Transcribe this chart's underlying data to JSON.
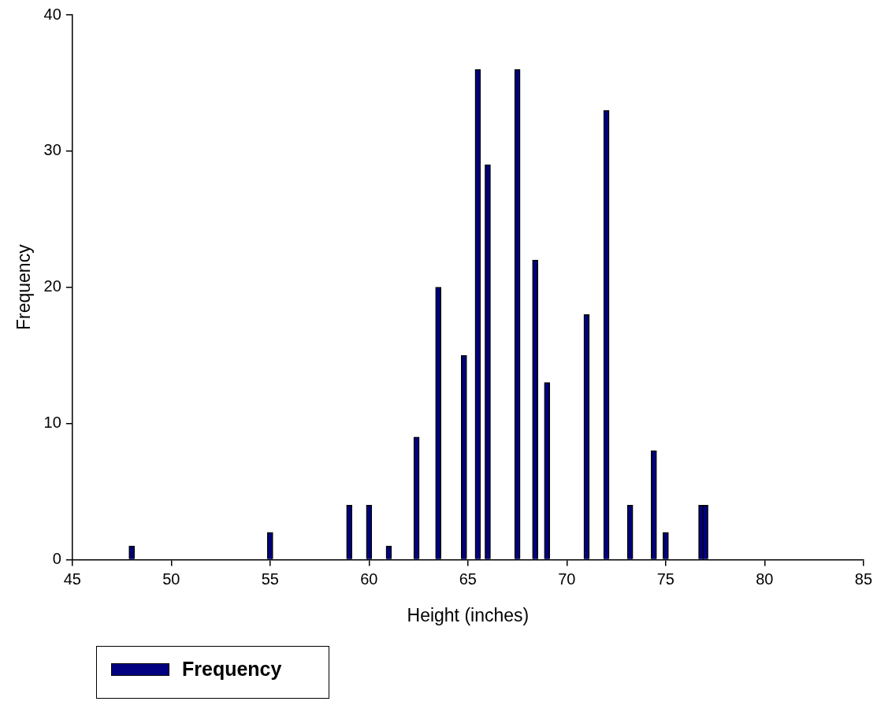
{
  "chart_data": {
    "type": "bar",
    "xlabel": "Height (inches)",
    "ylabel": "Frequency",
    "x": [
      48,
      55,
      59,
      60,
      61,
      62.4,
      63.5,
      64.8,
      65.5,
      66,
      67.5,
      68.4,
      69,
      71,
      72,
      73.2,
      74.4,
      75,
      76.8,
      77
    ],
    "series": [
      {
        "name": "Frequency",
        "color": "#000080",
        "values": [
          1,
          2,
          4,
          4,
          1,
          9,
          20,
          15,
          36,
          29,
          36,
          22,
          13,
          18,
          33,
          4,
          8,
          2,
          4,
          4
        ]
      }
    ],
    "xlim": [
      45,
      85
    ],
    "xticks": [
      45,
      50,
      55,
      60,
      65,
      70,
      75,
      80,
      85
    ],
    "ylim": [
      0,
      40
    ],
    "yticks": [
      0,
      10,
      20,
      30,
      40
    ],
    "grid": false,
    "legend": "bottom left"
  }
}
